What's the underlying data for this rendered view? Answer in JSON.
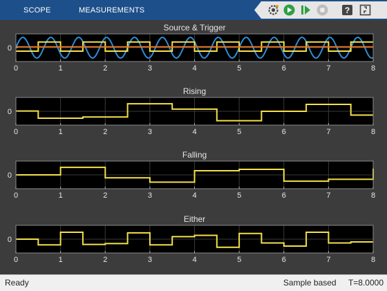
{
  "toolstrip": {
    "tabs": [
      {
        "label": "SCOPE"
      },
      {
        "label": "MEASUREMENTS"
      }
    ],
    "quick_access": [
      {
        "icon": "settings-icon"
      },
      {
        "icon": "run-icon"
      },
      {
        "icon": "step-forward-icon"
      },
      {
        "icon": "stop-icon"
      },
      {
        "icon": "help-icon"
      },
      {
        "icon": "expand-icon"
      }
    ]
  },
  "colors": {
    "toolstrip": "#1d4f8a",
    "plot_background": "#000000",
    "figure_background": "#3c3c3c",
    "axes_text": "#e6e6e6",
    "trace_yellow": "#f5e14a",
    "trace_blue": "#2e8fd6",
    "trace_orange": "#e8731f",
    "grid": "#3a3a3a"
  },
  "chart_data": [
    {
      "type": "line",
      "title": "Source & Trigger",
      "xlabel": "",
      "ylabel": "",
      "xlim": [
        0,
        8
      ],
      "ylim": [
        -1.2,
        1.2
      ],
      "xticks": [
        0,
        1,
        2,
        3,
        4,
        5,
        6,
        7,
        8
      ],
      "yticks": [
        {
          "value": 0,
          "label": "0"
        }
      ],
      "grid": true,
      "series": [
        {
          "kind": "sine",
          "color": "#2e8fd6",
          "amplitude": 0.9,
          "period": 0.625
        },
        {
          "kind": "square",
          "color": "#f5e14a",
          "high": 0.5,
          "low": -0.3,
          "period": 1,
          "starts_high": false
        },
        {
          "kind": "constant",
          "color": "#e8731f",
          "value": 0.08
        }
      ]
    },
    {
      "type": "line",
      "title": "Rising",
      "xlabel": "",
      "ylabel": "",
      "xlim": [
        0,
        8
      ],
      "ylim": [
        -1.1,
        1.1
      ],
      "xticks": [
        0,
        1,
        2,
        3,
        4,
        5,
        6,
        7,
        8
      ],
      "yticks": [
        {
          "value": 0,
          "label": "0"
        }
      ],
      "grid": true,
      "series": [
        {
          "kind": "step",
          "color": "#f5e14a",
          "x": [
            0,
            0.5,
            1.5,
            2.5,
            3.5,
            4.5,
            5.5,
            6.5,
            7.5,
            8
          ],
          "y": [
            0.02,
            -0.55,
            -0.45,
            0.6,
            0.17,
            -0.75,
            0.0,
            0.55,
            -0.3,
            -0.3
          ]
        }
      ]
    },
    {
      "type": "line",
      "title": "Falling",
      "xlabel": "",
      "ylabel": "",
      "xlim": [
        0,
        8
      ],
      "ylim": [
        -1.1,
        1.1
      ],
      "xticks": [
        0,
        1,
        2,
        3,
        4,
        5,
        6,
        7,
        8
      ],
      "yticks": [
        {
          "value": 0,
          "label": "0"
        }
      ],
      "grid": true,
      "series": [
        {
          "kind": "step",
          "color": "#f5e14a",
          "x": [
            0,
            1,
            2,
            3,
            4,
            5,
            6,
            7,
            8
          ],
          "y": [
            0.0,
            0.6,
            -0.23,
            -0.58,
            0.33,
            0.44,
            -0.5,
            -0.35,
            0.5
          ]
        }
      ]
    },
    {
      "type": "line",
      "title": "Either",
      "xlabel": "",
      "ylabel": "",
      "xlim": [
        0,
        8
      ],
      "ylim": [
        -1.1,
        1.1
      ],
      "xticks": [
        0,
        1,
        2,
        3,
        4,
        5,
        6,
        7,
        8
      ],
      "yticks": [
        {
          "value": 0,
          "label": "0"
        }
      ],
      "grid": true,
      "series": [
        {
          "kind": "step",
          "color": "#f5e14a",
          "x": [
            0,
            0.5,
            1,
            1.5,
            2,
            2.5,
            3,
            3.5,
            4,
            4.5,
            5,
            5.5,
            6,
            6.5,
            7,
            7.5,
            8
          ],
          "y": [
            0.0,
            -0.45,
            0.55,
            -0.42,
            -0.35,
            0.5,
            -0.45,
            0.2,
            0.3,
            -0.65,
            0.45,
            -0.3,
            -0.55,
            0.55,
            -0.3,
            -0.22,
            -0.22
          ]
        }
      ]
    }
  ],
  "status": {
    "left": "Ready",
    "mode": "Sample based",
    "time": "T=8.0000"
  }
}
